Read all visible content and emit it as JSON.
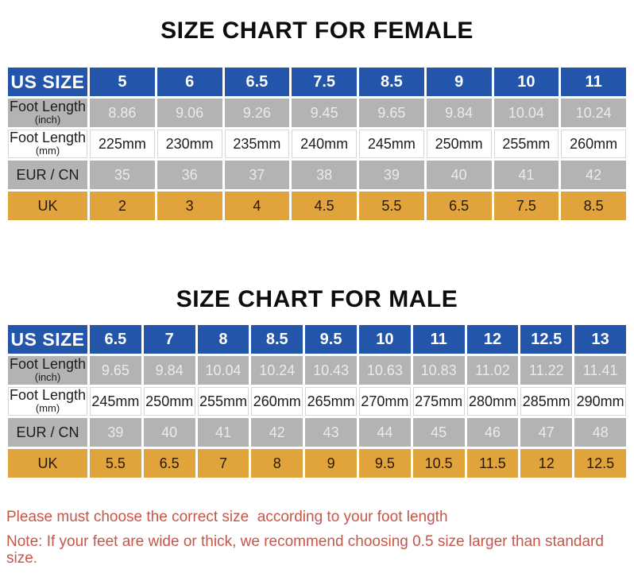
{
  "colors": {
    "header_blue": "#2355ab",
    "row_gray": "#b3b3b3",
    "gray_value_text": "#ebebeb",
    "uk_orange": "#e1a33b",
    "uk_text": "#2a1a05",
    "note_red": "#c5564a",
    "title_color": "#0d0d0d",
    "label_dark": "#1c1c1c",
    "mm_border": "#d6d6d6"
  },
  "chart_data": [
    {
      "type": "table",
      "title": "SIZE CHART FOR FEMALE",
      "rows": [
        {
          "label": "US SIZE",
          "sublabel": "",
          "style": "header",
          "values": [
            "5",
            "6",
            "6.5",
            "7.5",
            "8.5",
            "9",
            "10",
            "11"
          ]
        },
        {
          "label": "Foot Length",
          "sublabel": "(inch)",
          "style": "inch",
          "values": [
            "8.86",
            "9.06",
            "9.26",
            "9.45",
            "9.65",
            "9.84",
            "10.04",
            "10.24"
          ]
        },
        {
          "label": "Foot Length",
          "sublabel": "(mm)",
          "style": "mm",
          "values": [
            "225mm",
            "230mm",
            "235mm",
            "240mm",
            "245mm",
            "250mm",
            "255mm",
            "260mm"
          ]
        },
        {
          "label": "EUR / CN",
          "sublabel": "",
          "style": "eur",
          "values": [
            "35",
            "36",
            "37",
            "38",
            "39",
            "40",
            "41",
            "42"
          ]
        },
        {
          "label": "UK",
          "sublabel": "",
          "style": "uk",
          "values": [
            "2",
            "3",
            "4",
            "4.5",
            "5.5",
            "6.5",
            "7.5",
            "8.5"
          ]
        }
      ]
    },
    {
      "type": "table",
      "title": "SIZE CHART FOR MALE",
      "rows": [
        {
          "label": "US SIZE",
          "sublabel": "",
          "style": "header",
          "values": [
            "6.5",
            "7",
            "8",
            "8.5",
            "9.5",
            "10",
            "11",
            "12",
            "12.5",
            "13"
          ]
        },
        {
          "label": "Foot Length",
          "sublabel": "(inch)",
          "style": "inch",
          "values": [
            "9.65",
            "9.84",
            "10.04",
            "10.24",
            "10.43",
            "10.63",
            "10.83",
            "11.02",
            "11.22",
            "11.41"
          ]
        },
        {
          "label": "Foot Length",
          "sublabel": "(mm)",
          "style": "mm",
          "values": [
            "245mm",
            "250mm",
            "255mm",
            "260mm",
            "265mm",
            "270mm",
            "275mm",
            "280mm",
            "285mm",
            "290mm"
          ]
        },
        {
          "label": "EUR / CN",
          "sublabel": "",
          "style": "eur",
          "values": [
            "39",
            "40",
            "41",
            "42",
            "43",
            "44",
            "45",
            "46",
            "47",
            "48"
          ]
        },
        {
          "label": "UK",
          "sublabel": "",
          "style": "uk",
          "values": [
            "5.5",
            "6.5",
            "7",
            "8",
            "9",
            "9.5",
            "10.5",
            "11.5",
            "12",
            "12.5"
          ]
        }
      ]
    }
  ],
  "notes": {
    "line1": "Please must choose the correct size  according to your foot length",
    "line2": "Note: If your feet are wide or thick, we recommend choosing 0.5 size larger than standard size."
  }
}
